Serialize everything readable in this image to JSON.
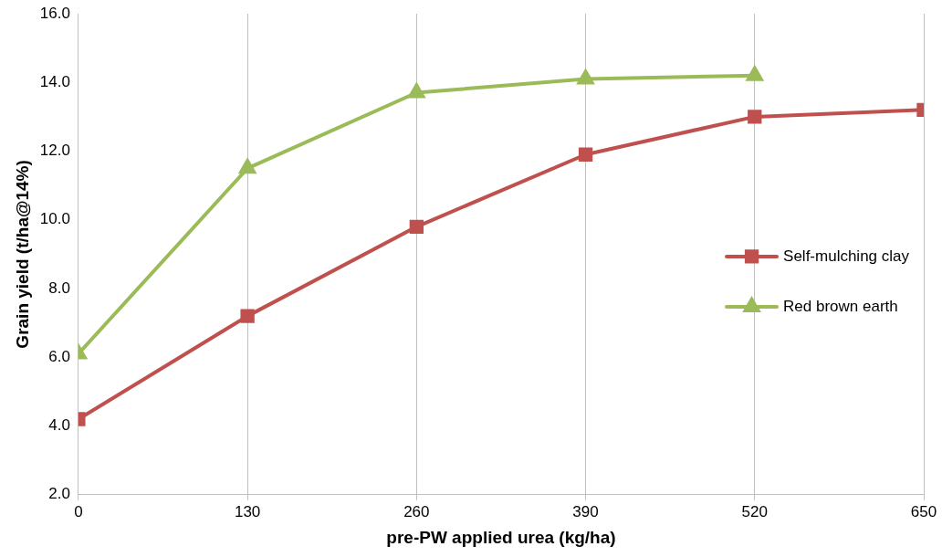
{
  "chart_data": {
    "type": "line",
    "xlabel": "pre-PW applied urea (kg/ha)",
    "ylabel": "Grain yield (t/ha@14%)",
    "x": [
      0,
      130,
      260,
      390,
      520,
      650
    ],
    "series": [
      {
        "name": "Self-mulching clay",
        "color": "#c0504d",
        "marker": "square",
        "values": [
          4.2,
          7.2,
          9.8,
          11.9,
          13.0,
          13.2
        ]
      },
      {
        "name": "Red brown earth",
        "color": "#9bbb59",
        "marker": "triangle",
        "values": [
          6.1,
          11.5,
          13.7,
          14.1,
          14.2,
          null
        ]
      }
    ],
    "xlim": [
      0,
      650
    ],
    "xticks": [
      0,
      130,
      260,
      390,
      520,
      650
    ],
    "ylim": [
      2,
      16
    ],
    "yticks": [
      {
        "value": 2,
        "label": "2.0"
      },
      {
        "value": 4,
        "label": "4.0"
      },
      {
        "value": 6,
        "label": "6.0"
      },
      {
        "value": 8,
        "label": "8.0"
      },
      {
        "value": 10,
        "label": "10.0"
      },
      {
        "value": 12,
        "label": "12.0"
      },
      {
        "value": 14,
        "label": "14.0"
      },
      {
        "value": 16,
        "label": "16.0"
      }
    ],
    "grid": "x",
    "legend": "right",
    "line_style": "solid"
  }
}
